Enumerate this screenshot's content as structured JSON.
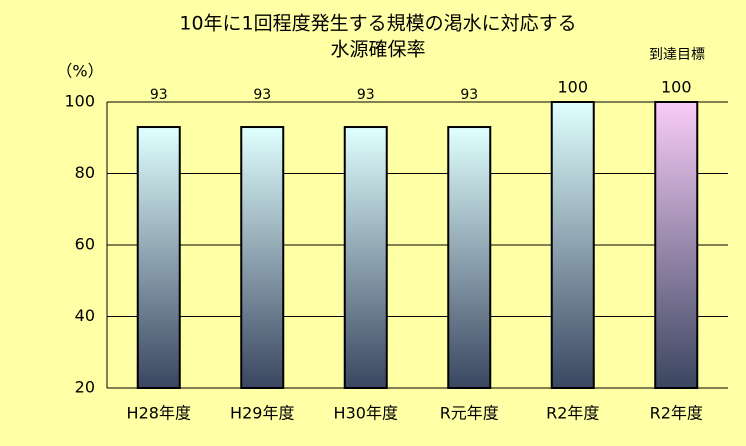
{
  "chart_data": {
    "type": "bar",
    "title": [
      "10年に1回程度発生する規模の渇水に対応する",
      "水源確保率"
    ],
    "y_label": "（%）",
    "annotation": "到達目標",
    "categories": [
      "H28年度",
      "H29年度",
      "H30年度",
      "R元年度",
      "R2年度",
      "R2年度"
    ],
    "values": [
      93,
      93,
      93,
      93,
      100,
      100
    ],
    "colors": [
      "#e0ffff",
      "#e0ffff",
      "#e0ffff",
      "#e0ffff",
      "#e0ffff",
      "#f8ccf8"
    ],
    "ylim": [
      20,
      100
    ],
    "yticks": [
      20,
      40,
      60,
      80,
      100
    ],
    "grid": true
  }
}
